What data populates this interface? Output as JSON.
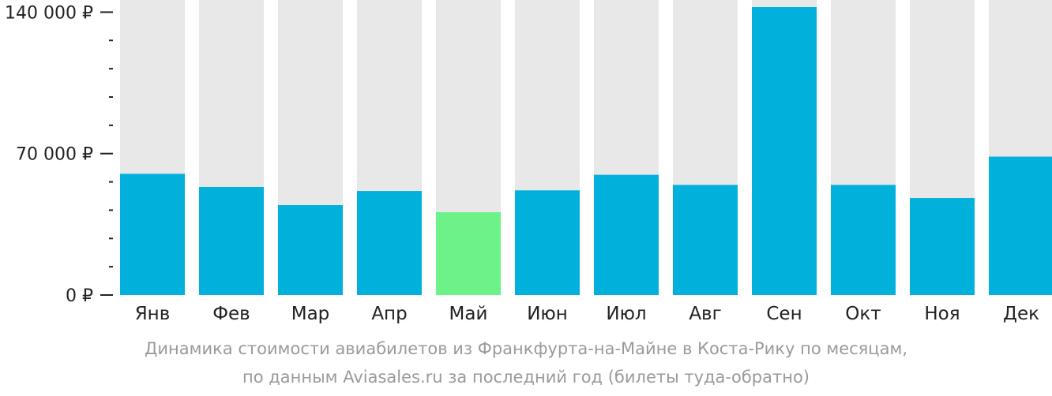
{
  "chart_data": {
    "type": "bar",
    "categories": [
      "Янв",
      "Фев",
      "Мар",
      "Апр",
      "Май",
      "Июн",
      "Июл",
      "Авг",
      "Сен",
      "Окт",
      "Ноя",
      "Дек"
    ],
    "values": [
      60000,
      53500,
      44500,
      51500,
      41000,
      51800,
      59500,
      54500,
      142500,
      54500,
      48000,
      68500
    ],
    "ylim": [
      0,
      142500
    ],
    "y_tick_labels": [
      "0 ₽",
      "70 000 ₽",
      "140 000 ₽"
    ],
    "y_tick_values": [
      0,
      70000,
      140000
    ],
    "minor_tick_step": 14000,
    "highlight_category": "Май",
    "colors": {
      "bar": "#02b0dc",
      "highlight": "#6cf288",
      "track": "#e8e8e8",
      "axis": "#222222"
    }
  },
  "caption": {
    "line1": "Динамика стоимости авиабилетов из Франкфурта-на-Майне в Коста-Рику по месяцам,",
    "line2": "по данным Aviasales.ru за последний год (билеты туда-обратно)"
  }
}
